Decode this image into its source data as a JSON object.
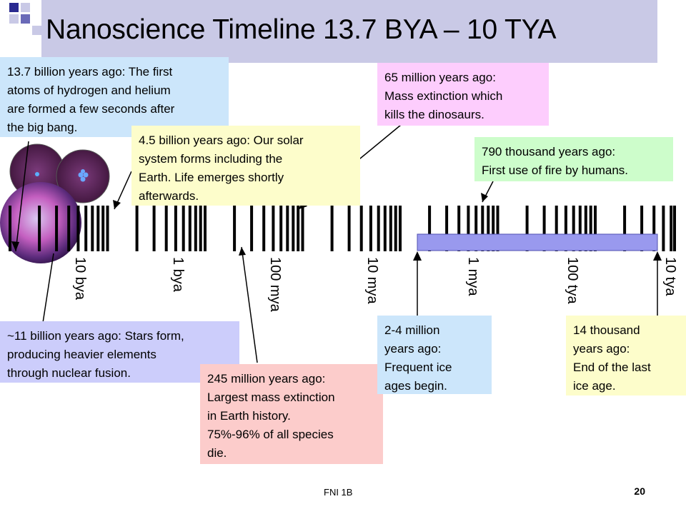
{
  "title": "Nanoscience Timeline 13.7 BYA – 10 TYA",
  "axis_labels": [
    "10 bya",
    "1 bya",
    "100 mya",
    "10 mya",
    "1 mya",
    "100 tya",
    "10 tya"
  ],
  "callouts": {
    "big_bang": "13.7 billion years ago:  The first\natoms of hydrogen and helium\nare formed a few seconds after\nthe big bang.",
    "solar_system": "4.5 billion years ago: Our solar\nsystem forms including the\nEarth.  Life emerges shortly\nafterwards.",
    "dinosaurs": "65 million years ago:\nMass extinction which\nkills the dinosaurs.",
    "fire": "790 thousand years ago:\nFirst use of fire by humans.",
    "stars": "~11 billion years ago: Stars form,\nproducing heavier elements\nthrough nuclear fusion.",
    "permian": "245 million years ago:\nLargest mass extinction\nin Earth history.\n75%-96% of all species\ndie.",
    "ice_ages": "2-4 million\nyears ago:\nFrequent ice\nages begin.",
    "last_ice_age": "14 thousand\nyears ago:\nEnd of the last\nice age."
  },
  "colors": {
    "title_bar": "#c9c9e6",
    "big_bang": "#cce6fb",
    "solar_system": "#fdfdcb",
    "dinosaurs": "#fdcdfd",
    "fire": "#cdfdcb",
    "stars": "#cccdfb",
    "permian": "#fccccb",
    "ice_ages": "#cce6fb",
    "last_ice_age": "#fdfdcb",
    "ice_age_band": "#9999ee"
  },
  "footer": {
    "text": "FNI 1B",
    "page": "20"
  }
}
